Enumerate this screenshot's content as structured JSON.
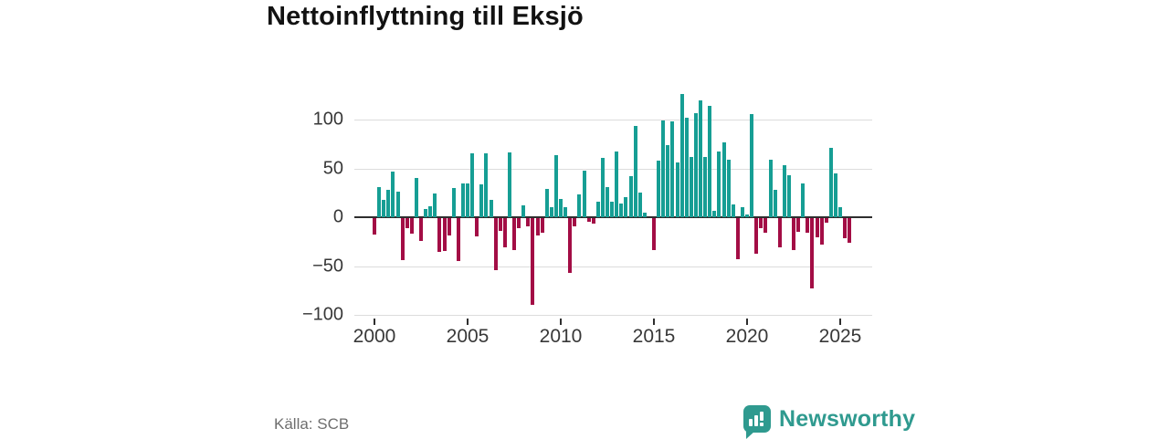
{
  "header": {
    "title": "Nettoinflyttning till Eksjö"
  },
  "footer": {
    "source": "Källa: SCB",
    "brand": "Newsworthy",
    "brand_color": "#2f9a8f",
    "brand_icon": "speech-bubble-bar-chart-icon"
  },
  "chart_data": {
    "type": "bar",
    "title": "Nettoinflyttning till Eksjö",
    "frequency": "quarterly",
    "start_year": 2000,
    "start_quarter": 1,
    "grid": true,
    "positive_color": "#169e94",
    "negative_color": "#a30d45",
    "axis_color": "#2e2e2e",
    "gridline_color": "#dcdcdc",
    "ylim": [
      -100,
      130
    ],
    "y_ticks": [
      {
        "value": 100,
        "label": "100"
      },
      {
        "value": 50,
        "label": "50"
      },
      {
        "value": 0,
        "label": "0"
      },
      {
        "value": -50,
        "label": "−50"
      },
      {
        "value": -100,
        "label": "−100"
      }
    ],
    "x_ticks": [
      {
        "year": 2000,
        "label": "2000"
      },
      {
        "year": 2005,
        "label": "2005"
      },
      {
        "year": 2010,
        "label": "2010"
      },
      {
        "year": 2015,
        "label": "2015"
      },
      {
        "year": 2020,
        "label": "2020"
      },
      {
        "year": 2025,
        "label": "2025"
      }
    ],
    "values": [
      -17,
      31,
      18,
      28,
      47,
      26,
      -43,
      -10,
      -16,
      40,
      -23,
      8,
      11,
      24,
      -35,
      -34,
      -18,
      30,
      -44,
      35,
      35,
      65,
      -19,
      34,
      65,
      18,
      -53,
      -13,
      -30,
      66,
      -33,
      -10,
      12,
      -8,
      -89,
      -18,
      -15,
      29,
      10,
      64,
      19,
      10,
      -56,
      -8,
      23,
      48,
      -4,
      -6,
      16,
      61,
      31,
      16,
      67,
      14,
      21,
      42,
      93,
      25,
      5,
      0,
      -33,
      58,
      99,
      74,
      98,
      56,
      126,
      102,
      62,
      107,
      120,
      62,
      114,
      7,
      67,
      77,
      59,
      13,
      -42,
      10,
      3,
      106,
      -36,
      -10,
      -15,
      59,
      28,
      -30,
      53,
      43,
      -33,
      -14,
      35,
      -15,
      -72,
      -20,
      -27,
      -5,
      71,
      45,
      10,
      -21,
      -25
    ]
  }
}
